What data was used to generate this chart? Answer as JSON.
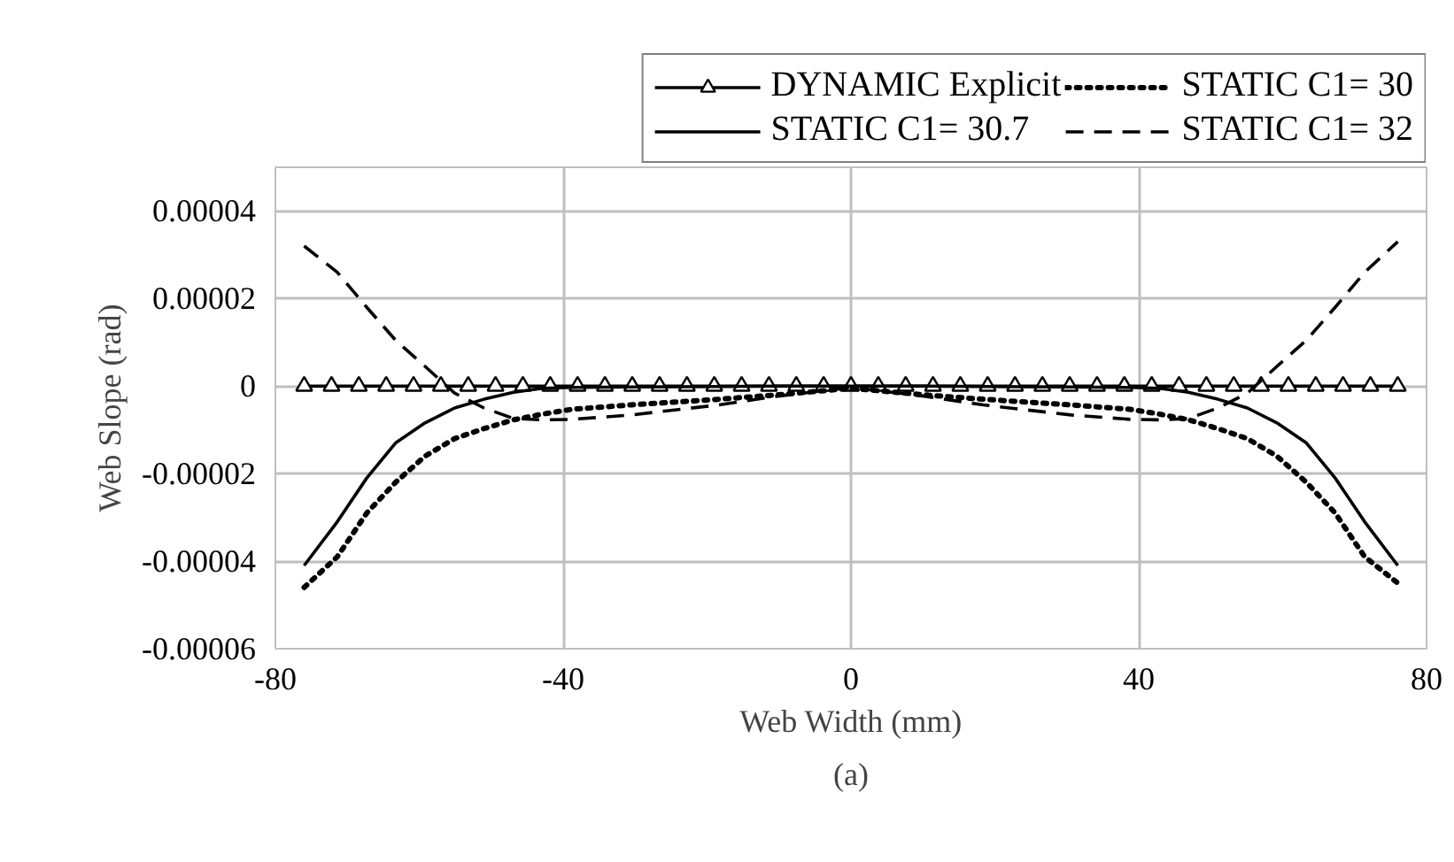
{
  "chart_data": {
    "type": "line",
    "xlabel": "Web Width (mm)",
    "ylabel": "Web Slope (rad)",
    "annotations": [
      "(a)"
    ],
    "xlim": [
      -80,
      80
    ],
    "xticks": [
      -80,
      -40,
      0,
      40,
      80
    ],
    "ylim": [
      -6e-05,
      5e-05
    ],
    "yticks": [
      {
        "value": 4e-05,
        "label": "0.00004"
      },
      {
        "value": 2e-05,
        "label": "0.00002"
      },
      {
        "value": 0,
        "label": "0"
      },
      {
        "value": -2e-05,
        "label": "-0.00002"
      },
      {
        "value": -4e-05,
        "label": "-0.00004"
      },
      {
        "value": -6e-05,
        "label": "-0.00006"
      }
    ],
    "grid": true,
    "legend": "top",
    "series": [
      {
        "name": "DYNAMIC Explicit",
        "color": "#000000",
        "marker": "triangle",
        "line_style": "solid",
        "x": [
          -76,
          -72.2,
          -68.4,
          -64.6,
          -60.8,
          -57,
          -53.2,
          -49.4,
          -45.6,
          -41.8,
          -38,
          -34.2,
          -30.4,
          -26.6,
          -22.8,
          -19,
          -15.2,
          -11.4,
          -7.6,
          -3.8,
          0,
          3.8,
          7.6,
          11.4,
          15.2,
          19,
          22.8,
          26.6,
          30.4,
          34.2,
          38,
          41.8,
          45.6,
          49.4,
          53.2,
          57,
          60.8,
          64.6,
          68.4,
          72.2,
          76
        ],
        "values": [
          0,
          0,
          0,
          0,
          0,
          0,
          0,
          0,
          0,
          0,
          0,
          0,
          0,
          0,
          0,
          0,
          0,
          0,
          0,
          0,
          0,
          0,
          0,
          0,
          0,
          0,
          0,
          0,
          0,
          0,
          0,
          0,
          0,
          0,
          0,
          0,
          0,
          0,
          0,
          0,
          0
        ]
      },
      {
        "name": "STATIC C1= 30",
        "color": "#000000",
        "marker": "none",
        "line_style": "dotted",
        "x": [
          -76,
          -71.4,
          -67.3,
          -63.3,
          -59.2,
          -55.1,
          -51,
          -46.9,
          -42.9,
          -38.8,
          -30.6,
          -18.4,
          -10.2,
          0,
          10.2,
          18.4,
          30.6,
          38.8,
          42.9,
          46.9,
          51,
          55.1,
          59.2,
          63.3,
          67.3,
          71.4,
          76
        ],
        "values": [
          -4.6e-05,
          -3.9e-05,
          -2.9e-05,
          -2.2e-05,
          -1.6e-05,
          -1.2e-05,
          -9.7e-06,
          -7.7e-06,
          -6.4e-06,
          -5.3e-06,
          -4.3e-06,
          -3e-06,
          -2e-06,
          -5e-07,
          -2e-06,
          -3e-06,
          -4.3e-06,
          -5.3e-06,
          -6.4e-06,
          -7.7e-06,
          -9.7e-06,
          -1.2e-05,
          -1.6e-05,
          -2.2e-05,
          -2.9e-05,
          -3.9e-05,
          -4.5e-05
        ]
      },
      {
        "name": "STATIC C1= 30.7",
        "color": "#000000",
        "marker": "none",
        "line_style": "solid",
        "x": [
          -76,
          -71.4,
          -67.3,
          -63.3,
          -59.2,
          -55.1,
          -51,
          -46.9,
          -42.9,
          -38.8,
          -30.6,
          -18.4,
          -10.2,
          0,
          10.2,
          18.4,
          30.6,
          38.8,
          42.9,
          46.9,
          51,
          55.1,
          59.2,
          63.3,
          67.3,
          71.4,
          76
        ],
        "values": [
          -4.1e-05,
          -3.1e-05,
          -2.1e-05,
          -1.3e-05,
          -8.4e-06,
          -5e-06,
          -3e-06,
          -1.4e-06,
          -5e-07,
          -3e-07,
          -2e-07,
          -1e-07,
          0,
          0,
          0,
          -1e-07,
          -2e-07,
          -3e-07,
          -5e-07,
          -1.4e-06,
          -3e-06,
          -5e-06,
          -8.4e-06,
          -1.3e-05,
          -2.1e-05,
          -3.1e-05,
          -4.1e-05
        ]
      },
      {
        "name": "STATIC C1= 32",
        "color": "#000000",
        "marker": "none",
        "line_style": "dashed",
        "x": [
          -76,
          -71.4,
          -67.3,
          -63.3,
          -59.2,
          -55.1,
          -51,
          -46.9,
          -42.9,
          -38.8,
          -30.6,
          -18.4,
          -10.2,
          0,
          10.2,
          18.4,
          30.6,
          38.8,
          42.9,
          46.9,
          51,
          55.1,
          59.2,
          63.3,
          67.3,
          71.4,
          76
        ],
        "values": [
          3.2e-05,
          2.6e-05,
          1.8e-05,
          1.05e-05,
          4.5e-06,
          -1.6e-06,
          -5e-06,
          -7.4e-06,
          -7.7e-06,
          -7.6e-06,
          -6.6e-06,
          -4.3e-06,
          -2.3e-06,
          -3e-07,
          -2.3e-06,
          -4.3e-06,
          -6.6e-06,
          -7.6e-06,
          -7.7e-06,
          -7.4e-06,
          -5e-06,
          -1.6e-06,
          4.5e-06,
          1.05e-05,
          1.8e-05,
          2.6e-05,
          3.3e-05
        ]
      }
    ]
  }
}
